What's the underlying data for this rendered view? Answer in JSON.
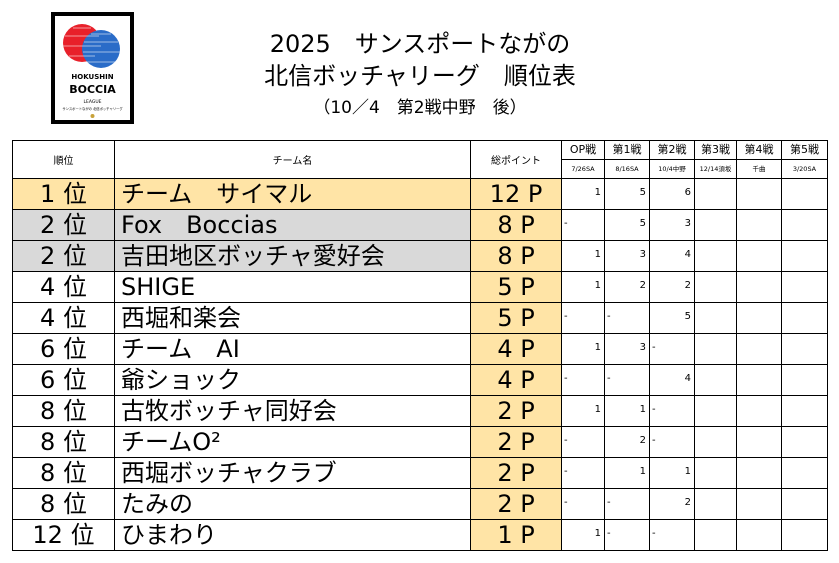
{
  "logo": {
    "line1": "HOKUSHIN",
    "line2": "BOCCIA",
    "line3": "LEAGUE",
    "line4": "サンスポートながの 北信ボッチャリーグ"
  },
  "title": {
    "line1": "2025　サンスポートながの",
    "line2": "北信ボッチャリーグ　順位表",
    "line3": "（10／4　第2戦中野　後）"
  },
  "headers": {
    "rank": "順位",
    "team": "チーム名",
    "points": "総ポイント",
    "events": [
      {
        "label": "OP戦",
        "date": "7/26SA"
      },
      {
        "label": "第1戦",
        "date": "8/16SA"
      },
      {
        "label": "第2戦",
        "date": "10/4中野"
      },
      {
        "label": "第3戦",
        "date": "12/14須坂"
      },
      {
        "label": "第4戦",
        "date": "千曲"
      },
      {
        "label": "第5戦",
        "date": "3/20SA"
      }
    ]
  },
  "rows": [
    {
      "rank": "1 位",
      "team": "チーム　サイマル",
      "points": "12 P",
      "highlight": "gold",
      "scores": [
        "1",
        "5",
        "6",
        "",
        "",
        ""
      ]
    },
    {
      "rank": "2 位",
      "team": "Fox　Boccias",
      "points": "8 P",
      "highlight": "gray",
      "scores": [
        "-",
        "5",
        "3",
        "",
        "",
        ""
      ]
    },
    {
      "rank": "2 位",
      "team": "吉田地区ボッチャ愛好会",
      "points": "8 P",
      "highlight": "gray",
      "scores": [
        "1",
        "3",
        "4",
        "",
        "",
        ""
      ]
    },
    {
      "rank": "4 位",
      "team": "SHIGE",
      "points": "5 P",
      "highlight": "",
      "scores": [
        "1",
        "2",
        "2",
        "",
        "",
        ""
      ]
    },
    {
      "rank": "4 位",
      "team": "西堀和楽会",
      "points": "5 P",
      "highlight": "",
      "scores": [
        "-",
        "-",
        "5",
        "",
        "",
        ""
      ]
    },
    {
      "rank": "6 位",
      "team": "チーム　AI",
      "points": "4 P",
      "highlight": "",
      "scores": [
        "1",
        "3",
        "-",
        "",
        "",
        ""
      ]
    },
    {
      "rank": "6 位",
      "team": "爺ショック",
      "points": "4 P",
      "highlight": "",
      "scores": [
        "-",
        "-",
        "4",
        "",
        "",
        ""
      ]
    },
    {
      "rank": "8 位",
      "team": "古牧ボッチャ同好会",
      "points": "2 P",
      "highlight": "",
      "scores": [
        "1",
        "1",
        "-",
        "",
        "",
        ""
      ]
    },
    {
      "rank": "8 位",
      "team": "チームO²",
      "points": "2 P",
      "highlight": "",
      "scores": [
        "-",
        "2",
        "-",
        "",
        "",
        ""
      ]
    },
    {
      "rank": "8 位",
      "team": "西堀ボッチャクラブ",
      "points": "2 P",
      "highlight": "",
      "scores": [
        "-",
        "1",
        "1",
        "",
        "",
        ""
      ]
    },
    {
      "rank": "8 位",
      "team": "たみの",
      "points": "2 P",
      "highlight": "",
      "scores": [
        "-",
        "-",
        "2",
        "",
        "",
        ""
      ]
    },
    {
      "rank": "12 位",
      "team": "ひまわり",
      "points": "1 P",
      "highlight": "",
      "scores": [
        "1",
        "-",
        "-",
        "",
        "",
        ""
      ]
    }
  ],
  "colors": {
    "gold": "#ffe4a6",
    "gray": "#d9d9d9",
    "ball_red": "#e8202a",
    "ball_blue": "#2a6cc8"
  }
}
